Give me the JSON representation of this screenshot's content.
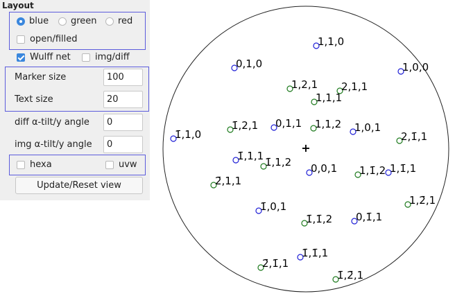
{
  "panel": {
    "title": "Layout",
    "colors": {
      "options": [
        {
          "label": "blue",
          "selected": true
        },
        {
          "label": "green",
          "selected": false
        },
        {
          "label": "red",
          "selected": false
        }
      ],
      "open_filled": {
        "label": "open/filled",
        "checked": false
      }
    },
    "wulff_net": {
      "label": "Wulff net",
      "checked": true
    },
    "img_diff": {
      "label": "img/diff",
      "checked": false
    },
    "marker_size": {
      "label": "Marker size",
      "value": "100"
    },
    "text_size": {
      "label": "Text size",
      "value": "20"
    },
    "diff_tilt": {
      "label": "diff α-tilt/y angle",
      "value": "0"
    },
    "img_tilt": {
      "label": "img α-tilt/y angle",
      "value": "0"
    },
    "hexa": {
      "label": "hexa",
      "checked": false
    },
    "uvw": {
      "label": "uvw",
      "checked": false
    },
    "update_button": "Update/Reset view"
  },
  "projection": {
    "center_mark": "+",
    "colors": {
      "blue": "#1f1fd6",
      "green": "#1d7a1d"
    },
    "poles": [
      {
        "label": "1,1,0",
        "color": "blue"
      },
      {
        "label": "0,1,0",
        "color": "blue"
      },
      {
        "label": "1,0,0",
        "color": "blue"
      },
      {
        "label": "1,2,1",
        "color": "green"
      },
      {
        "label": "2,1,1",
        "color": "green"
      },
      {
        "label": "1,1,1",
        "color": "green"
      },
      {
        "label": "1̄,2,1",
        "color": "green"
      },
      {
        "label": "0,1,1",
        "color": "blue"
      },
      {
        "label": "1,1,2",
        "color": "green"
      },
      {
        "label": "1,0,1",
        "color": "blue"
      },
      {
        "label": "2,1̄,1",
        "color": "green"
      },
      {
        "label": "1̄,1,0",
        "color": "blue"
      },
      {
        "label": "1̄,1,1",
        "color": "blue"
      },
      {
        "label": "1̄,1,2",
        "color": "green"
      },
      {
        "label": "0,0,1",
        "color": "blue"
      },
      {
        "label": "1,1̄,2",
        "color": "green"
      },
      {
        "label": "1,1̄,1",
        "color": "blue"
      },
      {
        "label": "2̄,1,1",
        "color": "green"
      },
      {
        "label": "1,2̄,1",
        "color": "green"
      },
      {
        "label": "1̄,0,1",
        "color": "blue"
      },
      {
        "label": "1̄,1̄,2",
        "color": "green"
      },
      {
        "label": "0,1̄,1",
        "color": "blue"
      },
      {
        "label": "1̄,1̄,1",
        "color": "blue"
      },
      {
        "label": "2̄,1̄,1",
        "color": "green"
      },
      {
        "label": "1̄,2̄,1",
        "color": "green"
      }
    ]
  }
}
